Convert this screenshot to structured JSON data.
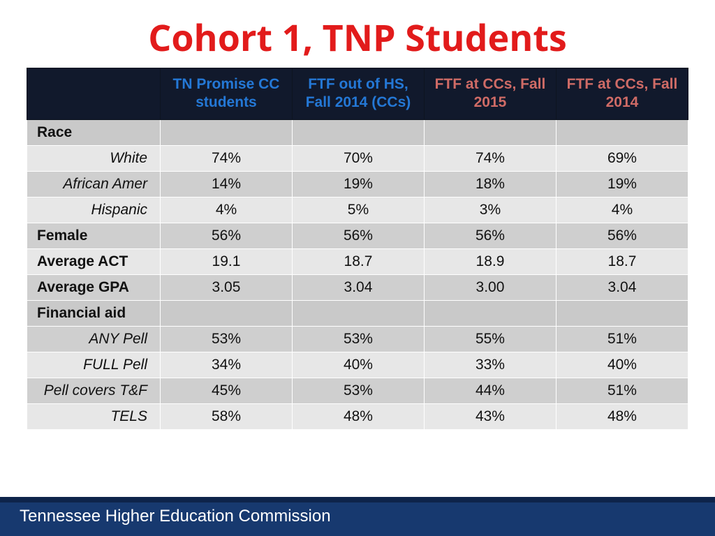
{
  "title": "Cohort 1, TNP Students",
  "footer": "Tennessee Higher Education Commission",
  "colors": {
    "title": "#e21b1b",
    "header_bg": "#11192c",
    "header_blue": "#2478d6",
    "header_red": "#cf6b66",
    "row_light": "#e7e7e7",
    "row_dark": "#cfcfcf",
    "section_bg": "#c9c9c9",
    "footer_bg": "#17396f",
    "footer_accent": "#0e244a"
  },
  "columns": [
    {
      "label": "",
      "color_class": ""
    },
    {
      "label": "TN Promise CC students",
      "color_class": "hdr-blue"
    },
    {
      "label": "FTF out of HS, Fall 2014 (CCs)",
      "color_class": "hdr-blue"
    },
    {
      "label": "FTF at CCs, Fall 2015",
      "color_class": "hdr-red"
    },
    {
      "label": "FTF at CCs, Fall 2014",
      "color_class": "hdr-red"
    }
  ],
  "rows": [
    {
      "type": "section",
      "label": "Race",
      "vals": [
        "",
        "",
        "",
        ""
      ]
    },
    {
      "type": "sub",
      "shade": "a",
      "label": "White",
      "vals": [
        "74%",
        "70%",
        "74%",
        "69%"
      ]
    },
    {
      "type": "sub",
      "shade": "b",
      "label": "African Amer",
      "vals": [
        "14%",
        "19%",
        "18%",
        "19%"
      ]
    },
    {
      "type": "sub",
      "shade": "a",
      "label": "Hispanic",
      "vals": [
        "4%",
        "5%",
        "3%",
        "4%"
      ]
    },
    {
      "type": "main",
      "shade": "b",
      "label": "Female",
      "vals": [
        "56%",
        "56%",
        "56%",
        "56%"
      ]
    },
    {
      "type": "main",
      "shade": "a",
      "label": "Average ACT",
      "vals": [
        "19.1",
        "18.7",
        "18.9",
        "18.7"
      ]
    },
    {
      "type": "main",
      "shade": "b",
      "label": "Average GPA",
      "vals": [
        "3.05",
        "3.04",
        "3.00",
        "3.04"
      ]
    },
    {
      "type": "section",
      "label": "Financial aid",
      "vals": [
        "",
        "",
        "",
        ""
      ]
    },
    {
      "type": "sub",
      "shade": "b",
      "label": "ANY Pell",
      "vals": [
        "53%",
        "53%",
        "55%",
        "51%"
      ]
    },
    {
      "type": "sub",
      "shade": "a",
      "label": "FULL Pell",
      "vals": [
        "34%",
        "40%",
        "33%",
        "40%"
      ]
    },
    {
      "type": "sub",
      "shade": "b",
      "label": "Pell covers T&F",
      "vals": [
        "45%",
        "53%",
        "44%",
        "51%"
      ]
    },
    {
      "type": "sub",
      "shade": "a",
      "label": "TELS",
      "vals": [
        "58%",
        "48%",
        "43%",
        "48%"
      ]
    }
  ]
}
